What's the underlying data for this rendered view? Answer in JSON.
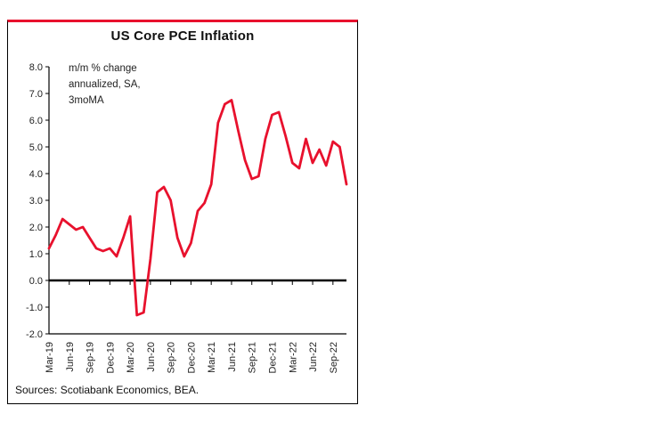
{
  "chart_data": {
    "type": "line",
    "title": "US Core PCE Inflation",
    "annotation_lines": [
      "m/m % change",
      "annualized, SA,",
      "3moMA"
    ],
    "series_name": "US Core PCE Inflation, m/m % change annualized, SA, 3moMA",
    "months": [
      "Mar-19",
      "Apr-19",
      "May-19",
      "Jun-19",
      "Jul-19",
      "Aug-19",
      "Sep-19",
      "Oct-19",
      "Nov-19",
      "Dec-19",
      "Jan-20",
      "Feb-20",
      "Mar-20",
      "Apr-20",
      "May-20",
      "Jun-20",
      "Jul-20",
      "Aug-20",
      "Sep-20",
      "Oct-20",
      "Nov-20",
      "Dec-20",
      "Jan-21",
      "Feb-21",
      "Mar-21",
      "Apr-21",
      "May-21",
      "Jun-21",
      "Jul-21",
      "Aug-21",
      "Sep-21",
      "Oct-21",
      "Nov-21",
      "Dec-21",
      "Jan-22",
      "Feb-22",
      "Mar-22",
      "Apr-22",
      "May-22",
      "Jun-22",
      "Jul-22",
      "Aug-22",
      "Sep-22",
      "Oct-22",
      "Nov-22"
    ],
    "values": [
      1.2,
      1.7,
      2.3,
      2.1,
      1.9,
      2.0,
      1.6,
      1.2,
      1.1,
      1.2,
      0.9,
      1.6,
      2.4,
      -1.3,
      -1.2,
      0.8,
      3.3,
      3.5,
      3.0,
      1.6,
      0.9,
      1.4,
      2.6,
      2.9,
      3.6,
      5.9,
      6.6,
      6.75,
      5.6,
      4.5,
      3.8,
      3.9,
      5.3,
      6.2,
      6.3,
      5.4,
      4.4,
      4.2,
      5.3,
      4.4,
      4.9,
      4.3,
      5.2,
      5.0,
      3.6
    ],
    "x_tick_labels": [
      "Mar-19",
      "Jun-19",
      "Sep-19",
      "Dec-19",
      "Mar-20",
      "Jun-20",
      "Sep-20",
      "Dec-20",
      "Mar-21",
      "Jun-21",
      "Sep-21",
      "Dec-21",
      "Mar-22",
      "Jun-22",
      "Sep-22"
    ],
    "x_tick_every": 3,
    "ylim": [
      -2.0,
      8.0
    ],
    "y_tick_step": 1.0,
    "y_tick_decimals": 1,
    "xlabel": "",
    "ylabel": "",
    "grid": "off",
    "legend": "none",
    "zero_line": true
  },
  "footer": {
    "sources": "Sources: Scotiabank Economics, BEA."
  },
  "colors": {
    "line_red": "#e8112d",
    "top_rule_red": "#e8112d",
    "axis_black": "#000000"
  }
}
